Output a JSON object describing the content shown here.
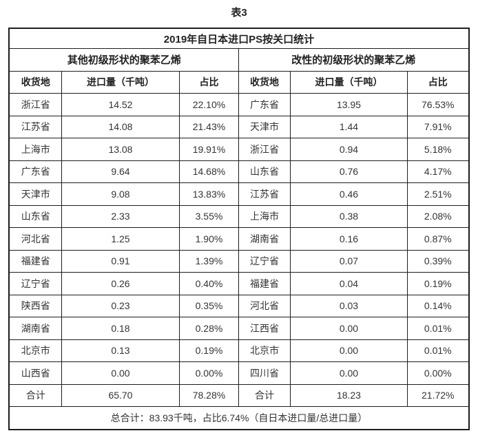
{
  "page": {
    "caption": "表3"
  },
  "chart_data": {
    "type": "table",
    "caption": "表3",
    "title": "2019年自日本进口PS按关口统计",
    "columns": [
      "收货地",
      "进口量（千吨）",
      "占比"
    ],
    "groups": [
      {
        "name": "其他初级形状的聚苯乙烯",
        "rows": [
          [
            "浙江省",
            "14.52",
            "22.10%"
          ],
          [
            "江苏省",
            "14.08",
            "21.43%"
          ],
          [
            "上海市",
            "13.08",
            "19.91%"
          ],
          [
            "广东省",
            "9.64",
            "14.68%"
          ],
          [
            "天津市",
            "9.08",
            "13.83%"
          ],
          [
            "山东省",
            "2.33",
            "3.55%"
          ],
          [
            "河北省",
            "1.25",
            "1.90%"
          ],
          [
            "福建省",
            "0.91",
            "1.39%"
          ],
          [
            "辽宁省",
            "0.26",
            "0.40%"
          ],
          [
            "陕西省",
            "0.23",
            "0.35%"
          ],
          [
            "湖南省",
            "0.18",
            "0.28%"
          ],
          [
            "北京市",
            "0.13",
            "0.19%"
          ],
          [
            "山西省",
            "0.00",
            "0.00%"
          ]
        ],
        "total": [
          "合计",
          "65.70",
          "78.28%"
        ]
      },
      {
        "name": "改性的初级形状的聚苯乙烯",
        "rows": [
          [
            "广东省",
            "13.95",
            "76.53%"
          ],
          [
            "天津市",
            "1.44",
            "7.91%"
          ],
          [
            "浙江省",
            "0.94",
            "5.18%"
          ],
          [
            "山东省",
            "0.76",
            "4.17%"
          ],
          [
            "江苏省",
            "0.46",
            "2.51%"
          ],
          [
            "上海市",
            "0.38",
            "2.08%"
          ],
          [
            "湖南省",
            "0.16",
            "0.87%"
          ],
          [
            "辽宁省",
            "0.07",
            "0.39%"
          ],
          [
            "福建省",
            "0.04",
            "0.19%"
          ],
          [
            "河北省",
            "0.03",
            "0.14%"
          ],
          [
            "江西省",
            "0.00",
            "0.01%"
          ],
          [
            "北京市",
            "0.00",
            "0.01%"
          ],
          [
            "四川省",
            "0.00",
            "0.00%"
          ]
        ],
        "total": [
          "合计",
          "18.23",
          "21.72%"
        ]
      }
    ],
    "footer": "总合计：83.93千吨，占比6.74%（自日本进口量/总进口量）",
    "layout": {
      "grid": "bordered",
      "border_color": "#1c1c1c",
      "text_color": "#333333",
      "background": "#ffffff"
    }
  }
}
